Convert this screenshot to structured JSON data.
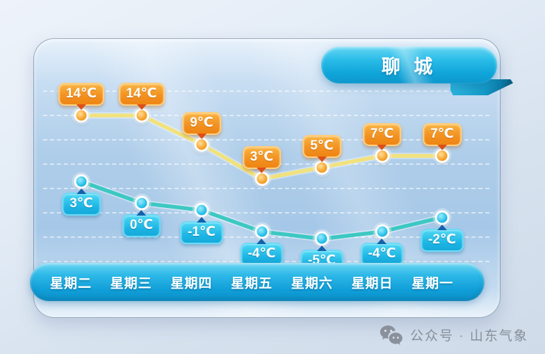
{
  "header": {
    "city_label": "聊 城"
  },
  "chart_data": {
    "type": "line",
    "title": "聊城",
    "categories": [
      "星期二",
      "星期三",
      "星期四",
      "星期五",
      "星期六",
      "星期日",
      "星期一"
    ],
    "series": [
      {
        "name": "high_temperature",
        "unit": "℃",
        "values": [
          14,
          14,
          9,
          3,
          5,
          7,
          7
        ],
        "labels": [
          "14℃",
          "14℃",
          "9℃",
          "3℃",
          "5℃",
          "7℃",
          "7℃"
        ],
        "line_color": "#f1e27d",
        "point_color": "#f5a22b",
        "badge_color": "#f29222"
      },
      {
        "name": "low_temperature",
        "unit": "℃",
        "values": [
          3,
          0,
          -1,
          -4,
          -5,
          -4,
          -2
        ],
        "labels": [
          "3℃",
          "0℃",
          "-1℃",
          "-4℃",
          "-5℃",
          "-4℃",
          "-2℃"
        ],
        "line_color": "#3dc8c3",
        "point_color": "#27bfe9",
        "badge_color": "#1eb6e5"
      }
    ],
    "xlabel": "",
    "ylabel": "",
    "grid": "horizontal-dashed-white",
    "legend": false,
    "colors": {
      "ribbon": "#10a5da",
      "day_bar": "#119fd9",
      "card_bg": "#aecde9"
    }
  },
  "footer": {
    "watermark_icon": "wechat-icon",
    "watermark_text": "公众号 · 山东气象"
  }
}
